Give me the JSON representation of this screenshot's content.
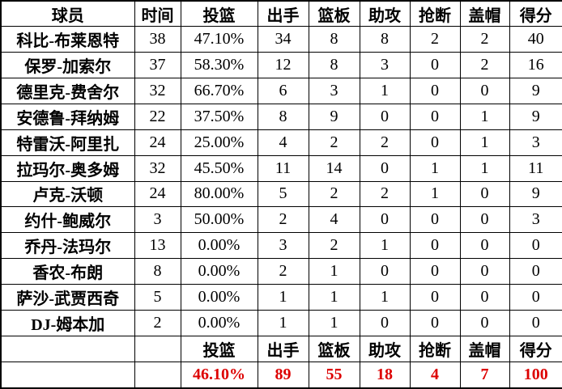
{
  "chart_data": {
    "type": "table",
    "title": "",
    "columns": [
      "球员",
      "时间",
      "投篮",
      "出手",
      "篮板",
      "助攻",
      "抢断",
      "盖帽",
      "得分"
    ],
    "rows": [
      [
        "科比-布莱恩特",
        "38",
        "47.10%",
        "34",
        "8",
        "8",
        "2",
        "2",
        "40"
      ],
      [
        "保罗-加索尔",
        "37",
        "58.30%",
        "12",
        "8",
        "3",
        "0",
        "2",
        "16"
      ],
      [
        "德里克-费舍尔",
        "32",
        "66.70%",
        "6",
        "3",
        "1",
        "0",
        "0",
        "9"
      ],
      [
        "安德鲁-拜纳姆",
        "22",
        "37.50%",
        "8",
        "9",
        "0",
        "0",
        "1",
        "9"
      ],
      [
        "特雷沃-阿里扎",
        "24",
        "25.00%",
        "4",
        "2",
        "2",
        "0",
        "1",
        "3"
      ],
      [
        "拉玛尔-奥多姆",
        "32",
        "45.50%",
        "11",
        "14",
        "0",
        "1",
        "1",
        "11"
      ],
      [
        "卢克-沃顿",
        "24",
        "80.00%",
        "5",
        "2",
        "2",
        "1",
        "0",
        "9"
      ],
      [
        "约什-鲍威尔",
        "3",
        "50.00%",
        "2",
        "4",
        "0",
        "0",
        "0",
        "3"
      ],
      [
        "乔丹-法玛尔",
        "13",
        "0.00%",
        "3",
        "2",
        "1",
        "0",
        "0",
        "0"
      ],
      [
        "香农-布朗",
        "8",
        "0.00%",
        "2",
        "1",
        "0",
        "0",
        "0",
        "0"
      ],
      [
        "萨沙-武贾西奇",
        "5",
        "0.00%",
        "1",
        "1",
        "1",
        "0",
        "0",
        "0"
      ],
      [
        "DJ-姆本加",
        "2",
        "0.00%",
        "1",
        "1",
        "0",
        "0",
        "0",
        "0"
      ]
    ],
    "summary_header": [
      "",
      "",
      "投篮",
      "出手",
      "篮板",
      "助攻",
      "抢断",
      "盖帽",
      "得分"
    ],
    "totals_row": [
      "",
      "",
      "46.10%",
      "89",
      "55",
      "18",
      "4",
      "7",
      "100"
    ]
  },
  "colors": {
    "border": "#000000",
    "background": "#ffffff",
    "text": "#000000",
    "totals_text": "#dd0000"
  }
}
